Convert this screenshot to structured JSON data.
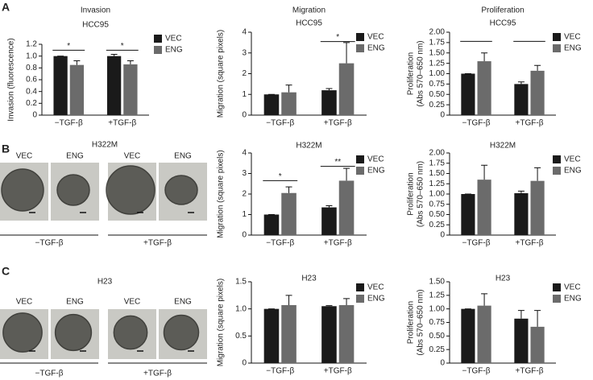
{
  "panel_labels": [
    "A",
    "B",
    "C"
  ],
  "image_panels": [
    {
      "title": "H322M",
      "image_labels": [
        "VEC",
        "ENG",
        "VEC",
        "ENG"
      ],
      "groups": [
        "−TGF-β",
        "+TGF-β"
      ]
    },
    {
      "title": "H23",
      "image_labels": [
        "VEC",
        "ENG",
        "VEC",
        "ENG"
      ],
      "groups": [
        "−TGF-β",
        "+TGF-β"
      ]
    }
  ],
  "chart_data": [
    {
      "type": "bar",
      "title": "Invasion",
      "subtitle": "HCC95",
      "ylabel": [
        "Invasion (fluorescence)"
      ],
      "categories": [
        "−TGF-β",
        "+TGF-β"
      ],
      "ylim": [
        0,
        1.2
      ],
      "yticks": [
        0,
        0.2,
        0.4,
        0.6,
        0.8,
        {
          "value": 1,
          "label": "1.0"
        },
        1.2
      ],
      "series": [
        {
          "name": "VEC",
          "color": "#1a1a1a",
          "values": [
            1.0,
            1.0
          ],
          "errors": [
            0,
            0.03
          ]
        },
        {
          "name": "ENG",
          "color": "#6b6b6b",
          "values": [
            0.85,
            0.86
          ],
          "errors": [
            0.07,
            0.06
          ]
        }
      ],
      "annotations": [
        "*",
        "*"
      ]
    },
    {
      "type": "bar",
      "title": "Migration",
      "subtitle": "HCC95",
      "ylabel": [
        "Migration (square pixels)"
      ],
      "categories": [
        "−TGF-β",
        "+TGF-β"
      ],
      "ylim": [
        0,
        4
      ],
      "yticks": [
        0,
        1,
        2,
        3,
        4
      ],
      "series": [
        {
          "name": "VEC",
          "color": "#1a1a1a",
          "values": [
            1.0,
            1.2
          ],
          "errors": [
            0,
            0.08
          ]
        },
        {
          "name": "ENG",
          "color": "#6b6b6b",
          "values": [
            1.1,
            2.5
          ],
          "errors": [
            0.35,
            1.0
          ]
        }
      ],
      "annotations": [
        "*"
      ]
    },
    {
      "type": "bar",
      "title": "Proliferation",
      "subtitle": "HCC95",
      "ylabel": [
        "Proliferation",
        "(Abs 570–650 nm)"
      ],
      "categories": [
        "−TGF-β",
        "+TGF-β"
      ],
      "ylim": [
        0,
        2
      ],
      "yticks": [
        0,
        0.25,
        {
          "value": 0.5,
          "label": "0.50"
        },
        0.75,
        {
          "value": 1,
          "label": "1.00"
        },
        1.25,
        {
          "value": 1.5,
          "label": "1.50"
        },
        1.75,
        {
          "value": 2,
          "label": "2.00"
        }
      ],
      "series": [
        {
          "name": "VEC",
          "color": "#1a1a1a",
          "values": [
            1.0,
            0.75
          ],
          "errors": [
            0,
            0.05
          ]
        },
        {
          "name": "ENG",
          "color": "#6b6b6b",
          "values": [
            1.3,
            1.07
          ],
          "errors": [
            0.2,
            0.13
          ]
        }
      ]
    },
    {
      "type": "bar",
      "title": "H322M",
      "ylabel": [
        "Migration (square pixels)"
      ],
      "categories": [
        "−TGF-β",
        "+TGF-β"
      ],
      "ylim": [
        0,
        4
      ],
      "yticks": [
        0,
        1,
        2,
        3,
        4
      ],
      "series": [
        {
          "name": "VEC",
          "color": "#1a1a1a",
          "values": [
            1.0,
            1.35
          ],
          "errors": [
            0,
            0.08
          ]
        },
        {
          "name": "ENG",
          "color": "#6b6b6b",
          "values": [
            2.05,
            2.65
          ],
          "errors": [
            0.3,
            0.6
          ]
        }
      ],
      "annotations": [
        "*",
        "**"
      ]
    },
    {
      "type": "bar",
      "title": "H322M",
      "ylabel": [
        "Proliferation",
        "(Abs 570–650 nm)"
      ],
      "categories": [
        "−TGF-β",
        "+TGF-β"
      ],
      "ylim": [
        0,
        2
      ],
      "yticks": [
        0,
        0.25,
        {
          "value": 0.5,
          "label": "0.50"
        },
        0.75,
        {
          "value": 1,
          "label": "1.00"
        },
        1.25,
        {
          "value": 1.5,
          "label": "1.50"
        },
        1.75,
        {
          "value": 2,
          "label": "2.00"
        }
      ],
      "series": [
        {
          "name": "VEC",
          "color": "#1a1a1a",
          "values": [
            1.0,
            1.02
          ],
          "errors": [
            0,
            0.05
          ]
        },
        {
          "name": "ENG",
          "color": "#6b6b6b",
          "values": [
            1.35,
            1.32
          ],
          "errors": [
            0.35,
            0.32
          ]
        }
      ]
    },
    {
      "type": "bar",
      "title": "H23",
      "ylabel": [
        "Migration (square pixels)"
      ],
      "categories": [
        "−TGF-β",
        "+TGF-β"
      ],
      "ylim": [
        0,
        1.5
      ],
      "yticks": [
        0,
        0.5,
        {
          "value": 1,
          "label": "1.0"
        },
        1.5
      ],
      "series": [
        {
          "name": "VEC",
          "color": "#1a1a1a",
          "values": [
            1.0,
            1.05
          ],
          "errors": [
            0,
            0.01
          ]
        },
        {
          "name": "ENG",
          "color": "#6b6b6b",
          "values": [
            1.07,
            1.07
          ],
          "errors": [
            0.18,
            0.12
          ]
        }
      ]
    },
    {
      "type": "bar",
      "title": "H23",
      "ylabel": [
        "Proliferation",
        "(Abs 570–650 nm)"
      ],
      "categories": [
        "−TGF-β",
        "+TGF-β"
      ],
      "ylim": [
        0,
        1.5
      ],
      "yticks": [
        0,
        0.25,
        {
          "value": 0.5,
          "label": "0.50"
        },
        0.75,
        {
          "value": 1,
          "label": "1.00"
        },
        1.25,
        {
          "value": 1.5,
          "label": "1.50"
        }
      ],
      "series": [
        {
          "name": "VEC",
          "color": "#1a1a1a",
          "values": [
            1.0,
            0.82
          ],
          "errors": [
            0,
            0.15
          ]
        },
        {
          "name": "ENG",
          "color": "#6b6b6b",
          "values": [
            1.06,
            0.67
          ],
          "errors": [
            0.22,
            0.3
          ]
        }
      ]
    }
  ]
}
